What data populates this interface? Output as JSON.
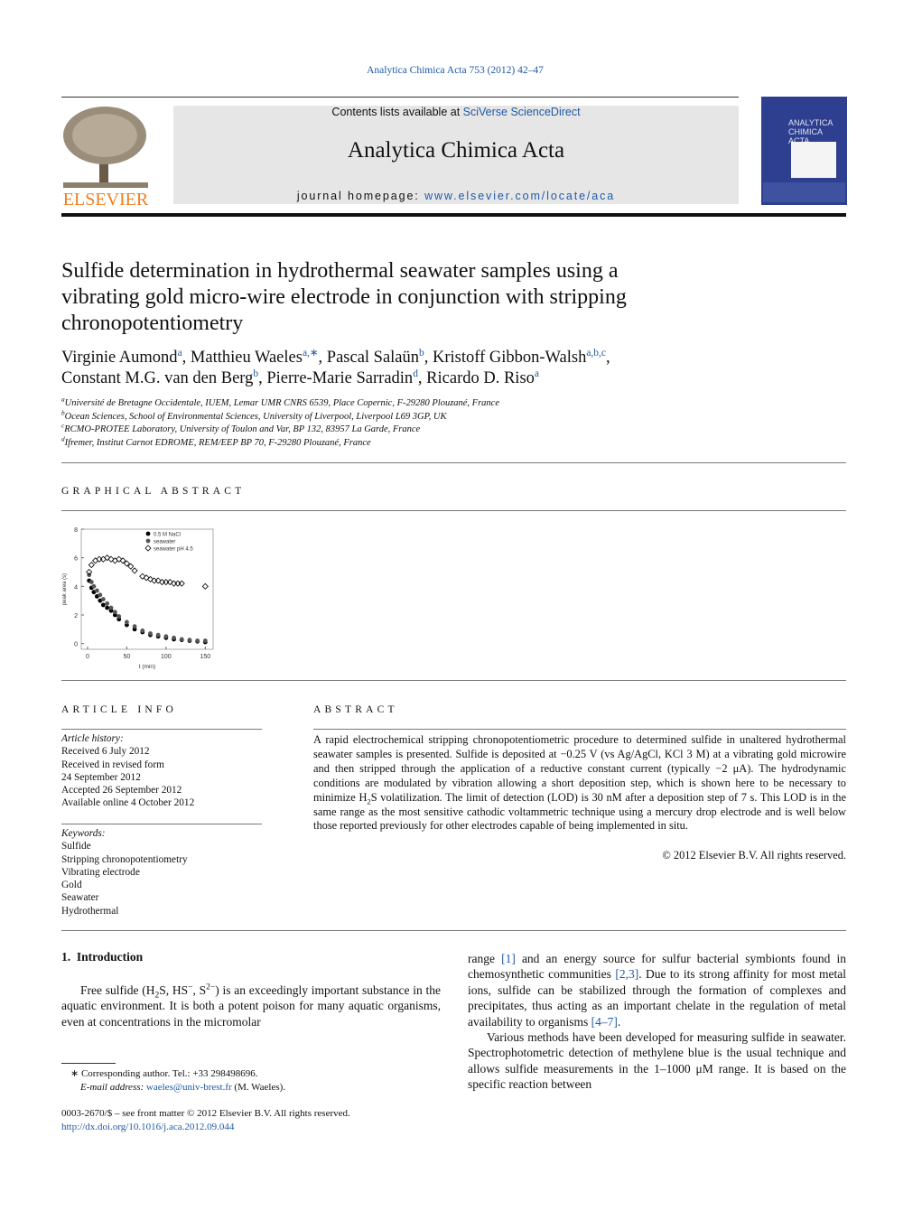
{
  "journal_ref": "Analytica Chimica Acta 753 (2012) 42–47",
  "header": {
    "publisher": "ELSEVIER",
    "contents_prefix": "Contents lists available at",
    "contents_link": "SciVerse ScienceDirect",
    "journal": "Analytica Chimica Acta",
    "homepage_prefix": "journal homepage:",
    "homepage_link": "www.elsevier.com/locate/aca",
    "cover_title": "ANALYTICA CHIMICA ACTA"
  },
  "title_lines": [
    "Sulfide determination in hydrothermal seawater samples using a",
    "vibrating gold micro-wire electrode in conjunction with stripping",
    "chronopotentiometry"
  ],
  "author_lines": [
    [
      "Virginie Aumond",
      "a",
      ", Matthieu Waeles",
      "a,∗",
      ", Pascal Salaün",
      "b",
      ", Kristoff Gibbon-Walsh",
      "a,b,c",
      ","
    ],
    [
      "Constant M.G. van den Berg",
      "b",
      ", Pierre-Marie Sarradin",
      "d",
      ", Ricardo D. Riso",
      "a"
    ]
  ],
  "affiliations": [
    [
      "a",
      "Université de Bretagne Occidentale, IUEM, Lemar UMR CNRS 6539, Place Copernic, F-29280 Plouzané, France"
    ],
    [
      "b",
      "Ocean Sciences, School of Environmental Sciences, University of Liverpool, Liverpool L69 3GP, UK"
    ],
    [
      "c",
      "RCMO-PROTEE Laboratory, University of Toulon and Var, BP 132, 83957 La Garde, France"
    ],
    [
      "d",
      "Ifremer, Institut Carnot EDROME, REM/EEP BP 70, F-29280 Plouzané, France"
    ]
  ],
  "graphical_abstract": {
    "heading": "GRAPHICAL ABSTRACT",
    "chart": {
      "type": "scatter",
      "xlabel": "t (min)",
      "ylabel": "peak area (s)",
      "xlim": [
        -8,
        160
      ],
      "ylim": [
        -0.4,
        8
      ],
      "xticks": [
        0,
        50,
        100,
        150
      ],
      "yticks": [
        0,
        2,
        4,
        6,
        8
      ],
      "series": [
        {
          "name": "0.5 M NaCl",
          "color": "#000000",
          "marker": "circle",
          "x": [
            2,
            5,
            8,
            12,
            16,
            20,
            25,
            30,
            35,
            40,
            50,
            60,
            70,
            80,
            90,
            100,
            110,
            120,
            130,
            140,
            150
          ],
          "values": [
            4.4,
            3.9,
            3.6,
            3.3,
            3.0,
            2.7,
            2.5,
            2.3,
            2.0,
            1.7,
            1.3,
            1.0,
            0.8,
            0.6,
            0.5,
            0.4,
            0.3,
            0.25,
            0.2,
            0.15,
            0.1
          ]
        },
        {
          "name": "seawater",
          "color": "#555555",
          "marker": "circle",
          "x": [
            2,
            5,
            8,
            12,
            16,
            20,
            25,
            30,
            35,
            40,
            50,
            60,
            70,
            80,
            90,
            100,
            110,
            120,
            130,
            140,
            150
          ],
          "values": [
            4.8,
            4.3,
            4.0,
            3.7,
            3.4,
            3.1,
            2.8,
            2.5,
            2.2,
            1.9,
            1.5,
            1.2,
            0.9,
            0.7,
            0.6,
            0.5,
            0.4,
            0.3,
            0.25,
            0.2,
            0.2
          ]
        },
        {
          "name": "seawater pH 4.5",
          "color": "#000000",
          "marker": "diamond",
          "x": [
            2,
            5,
            10,
            15,
            20,
            25,
            30,
            35,
            40,
            45,
            50,
            55,
            60,
            70,
            75,
            80,
            85,
            90,
            95,
            100,
            105,
            110,
            115,
            120,
            150
          ],
          "values": [
            5.0,
            5.5,
            5.8,
            5.9,
            5.9,
            6.0,
            5.9,
            5.8,
            5.9,
            5.8,
            5.6,
            5.4,
            5.1,
            4.7,
            4.6,
            4.5,
            4.4,
            4.4,
            4.3,
            4.3,
            4.3,
            4.2,
            4.2,
            4.2,
            4.0
          ]
        }
      ]
    }
  },
  "article_info": {
    "heading": "ARTICLE INFO",
    "history_label": "Article history:",
    "history": [
      "Received 6 July 2012",
      "Received in revised form",
      "24 September 2012",
      "Accepted 26 September 2012",
      "Available online 4 October 2012"
    ],
    "keywords_label": "Keywords:",
    "keywords": [
      "Sulfide",
      "Stripping chronopotentiometry",
      "Vibrating electrode",
      "Gold",
      "Seawater",
      "Hydrothermal"
    ]
  },
  "abstract": {
    "heading": "ABSTRACT",
    "parts": [
      "A rapid electrochemical stripping chronopotentiometric procedure to determined sulfide in unaltered hydrothermal seawater samples is presented. Sulfide is deposited at −0.25 V (vs Ag/AgCl, KCl 3 M) at a vibrating gold microwire and then stripped through the application of a reductive constant current (typically −2 μA). The hydrodynamic conditions are modulated by vibration allowing a short deposition step, which is shown here to be necessary to minimize H",
      "2",
      "S volatilization. The limit of detection (LOD) is 30 nM after a deposition step of 7 s. This LOD is in the same range as the most sensitive cathodic voltammetric technique using a mercury drop electrode and is well below those reported previously for other electrodes capable of being implemented in situ."
    ],
    "copyright": "© 2012 Elsevier B.V. All rights reserved."
  },
  "introduction": {
    "heading": "1.  Introduction",
    "left_parts": [
      "Free sulfide (H",
      "2",
      "S, HS",
      "−",
      ", S",
      "2−",
      ") is an exceedingly important substance in the aquatic environment. It is both a potent poison for many aquatic organisms, even at concentrations in the micromolar"
    ],
    "right_parts": [
      "range ",
      "[1]",
      " and an energy source for sulfur bacterial symbionts found in chemosynthetic communities ",
      "[2,3]",
      ". Due to its strong affinity for most metal ions, sulfide can be stabilized through the formation of complexes and precipitates, thus acting as an important chelate in the regulation of metal availability to organisms ",
      "[4–7]",
      "."
    ],
    "right_parts_2": [
      "Various methods have been developed for measuring sulfide in seawater. Spectrophotometric detection of methylene blue is the usual technique and allows sulfide measurements in the 1–1000 μM range. It is based on the specific reaction between"
    ]
  },
  "footnotes": {
    "corresponding": [
      "∗",
      " Corresponding author. Tel.: +33 298498696."
    ],
    "email": [
      "E-mail address: ",
      "waeles@univ-brest.fr",
      " (M. Waeles)."
    ]
  },
  "footer": {
    "issn": "0003-2670/$ – see front matter © 2012 Elsevier B.V. All rights reserved.",
    "doi": "http://dx.doi.org/10.1016/j.aca.2012.09.044"
  }
}
